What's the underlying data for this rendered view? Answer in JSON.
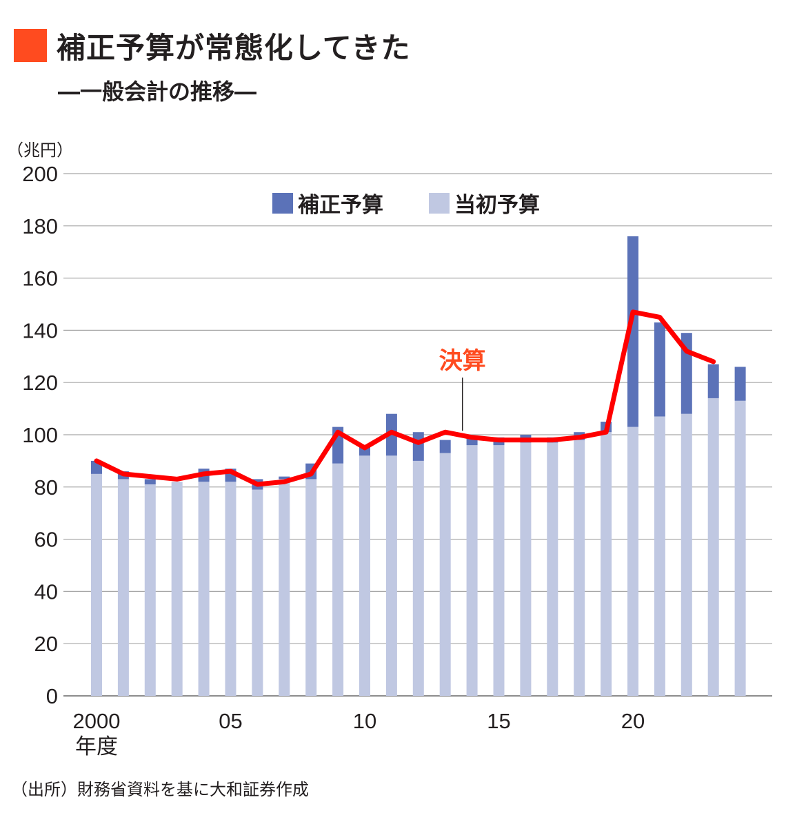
{
  "header": {
    "title": "補正予算が常態化してきた",
    "subtitle": "―一般会計の推移―",
    "accent_color": "#ff4b1f"
  },
  "source_note": "（出所）財務省資料を基に大和証券作成",
  "chart_data": {
    "type": "bar",
    "stacked": true,
    "unit_label": "（兆円）",
    "ylim": [
      0,
      200
    ],
    "yticks": [
      0,
      20,
      40,
      60,
      80,
      100,
      120,
      140,
      160,
      180,
      200
    ],
    "grid": true,
    "legend_position": "top-center",
    "x_first_label_suffix": "年度",
    "categories": [
      2000,
      2001,
      2002,
      2003,
      2004,
      2005,
      2006,
      2007,
      2008,
      2009,
      2010,
      2011,
      2012,
      2013,
      2014,
      2015,
      2016,
      2017,
      2018,
      2019,
      2020,
      2021,
      2022,
      2023,
      2024
    ],
    "xtick_labels": [
      {
        "year": 2000,
        "label": "2000"
      },
      {
        "year": 2005,
        "label": "05"
      },
      {
        "year": 2010,
        "label": "10"
      },
      {
        "year": 2015,
        "label": "15"
      },
      {
        "year": 2020,
        "label": "20"
      }
    ],
    "series": [
      {
        "name": "当初予算",
        "color": "#c0c8e2",
        "values": [
          85,
          83,
          81,
          82,
          82,
          82,
          79,
          83,
          83,
          89,
          92,
          92,
          90,
          93,
          96,
          96,
          97,
          97,
          98,
          101,
          103,
          107,
          108,
          114,
          113
        ]
      },
      {
        "name": "補正予算",
        "color": "#5b72b8",
        "values": [
          5,
          3,
          2,
          0,
          5,
          5,
          4,
          1,
          6,
          14,
          4,
          16,
          11,
          5,
          3,
          3,
          3,
          2,
          3,
          4,
          73,
          36,
          31,
          13,
          13
        ]
      },
      {
        "name": "決算",
        "type": "line",
        "color": "#ff0000",
        "label_color": "#ff4b1f",
        "values": [
          90,
          85,
          84,
          83,
          85,
          86,
          81,
          82,
          85,
          101,
          95,
          101,
          97,
          101,
          99,
          98,
          98,
          98,
          99,
          101,
          147,
          145,
          132,
          128,
          null
        ]
      }
    ]
  }
}
